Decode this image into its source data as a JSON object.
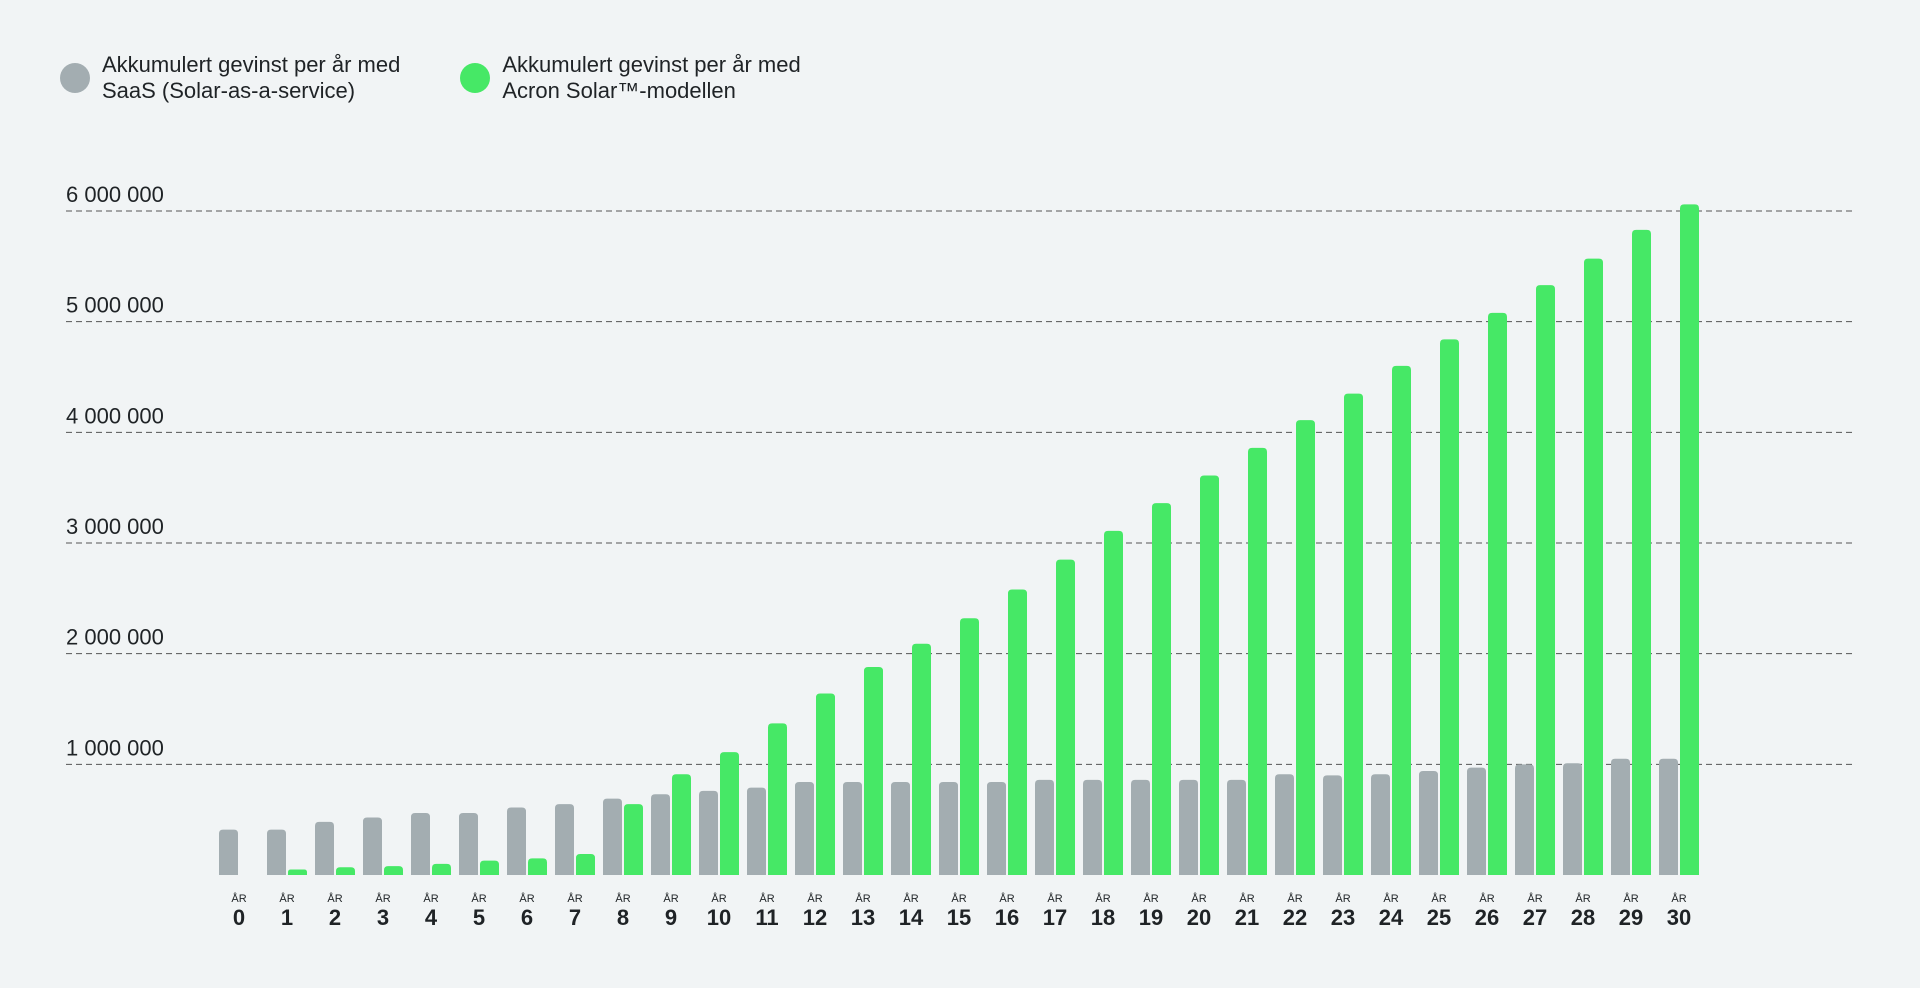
{
  "legend": [
    {
      "label": "Akkumulert gevinst per år med\nSaaS (Solar-as-a-service)",
      "color": "#a3adb1"
    },
    {
      "label": "Akkumulert gevinst per år med\nAcron Solar™-modellen",
      "color": "#46e866"
    }
  ],
  "chart_data": {
    "type": "bar",
    "grid": true,
    "ylim": [
      0,
      6000000
    ],
    "y_ticks": [
      {
        "value": 1000000,
        "label": "1 000 000"
      },
      {
        "value": 2000000,
        "label": "2 000 000"
      },
      {
        "value": 3000000,
        "label": "3 000 000"
      },
      {
        "value": 4000000,
        "label": "4 000 000"
      },
      {
        "value": 5000000,
        "label": "5 000 000"
      },
      {
        "value": 6000000,
        "label": "6 000 000"
      }
    ],
    "category_prefix": "ÅR",
    "categories": [
      "0",
      "1",
      "2",
      "3",
      "4",
      "5",
      "6",
      "7",
      "8",
      "9",
      "10",
      "11",
      "12",
      "13",
      "14",
      "15",
      "16",
      "17",
      "18",
      "19",
      "20",
      "21",
      "22",
      "23",
      "24",
      "25",
      "26",
      "27",
      "28",
      "29",
      "30"
    ],
    "series": [
      {
        "name": "Akkumulert gevinst per år med SaaS (Solar-as-a-service)",
        "color": "#a3adb1",
        "values": [
          410000,
          410000,
          480000,
          520000,
          560000,
          560000,
          610000,
          640000,
          690000,
          730000,
          760000,
          790000,
          840000,
          840000,
          840000,
          840000,
          840000,
          860000,
          860000,
          860000,
          860000,
          860000,
          910000,
          900000,
          910000,
          940000,
          970000,
          1000000,
          1010000,
          1050000,
          1050000
        ]
      },
      {
        "name": "Akkumulert gevinst per år med Acron Solar™-modellen",
        "color": "#46e866",
        "values": [
          0,
          50000,
          70000,
          80000,
          100000,
          130000,
          150000,
          190000,
          640000,
          910000,
          1110000,
          1370000,
          1640000,
          1880000,
          2090000,
          2320000,
          2580000,
          2850000,
          3110000,
          3360000,
          3610000,
          3860000,
          4110000,
          4350000,
          4600000,
          4840000,
          5080000,
          5330000,
          5570000,
          5830000,
          6060000
        ]
      }
    ]
  }
}
